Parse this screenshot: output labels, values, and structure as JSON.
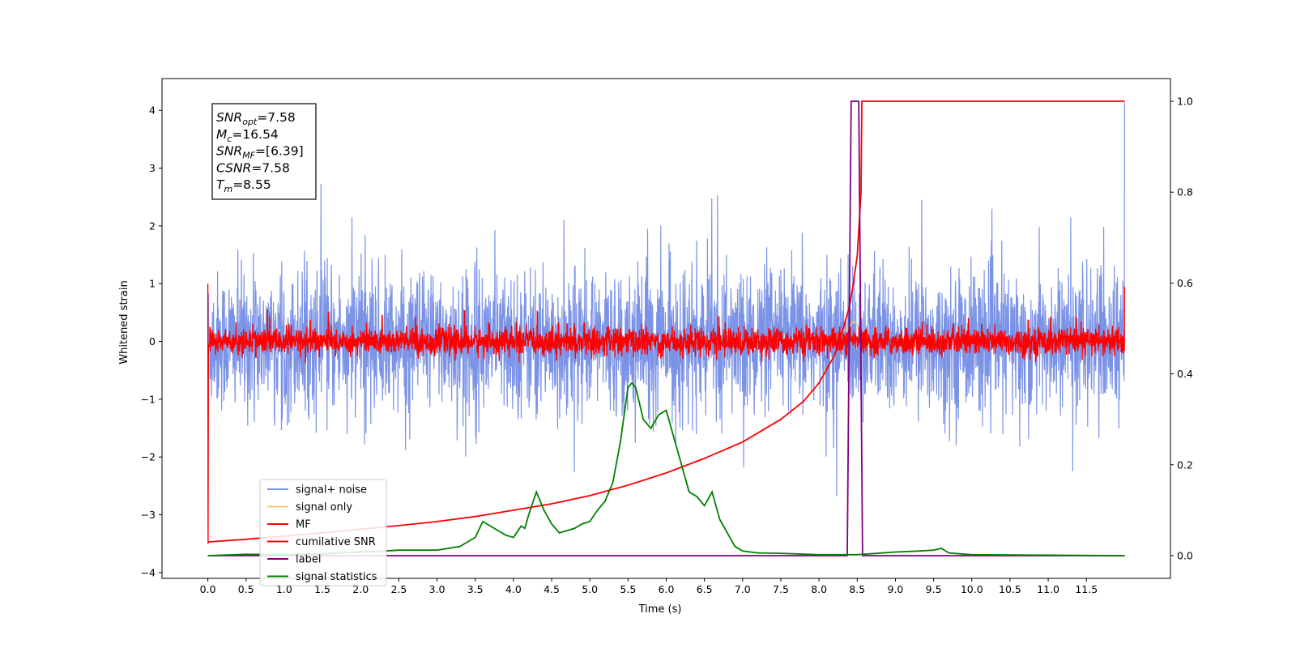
{
  "chart_data": {
    "type": "line",
    "title": "",
    "xlabel": "Time (s)",
    "ylabel": "Whitened strain",
    "xlim": [
      -0.6,
      12.6
    ],
    "ylim": [
      -4.1,
      4.55
    ],
    "ylim_right": [
      -0.05,
      1.05
    ],
    "x_ticks": [
      "0.0",
      "0.5",
      "1.0",
      "1.5",
      "2.0",
      "2.5",
      "3.0",
      "3.5",
      "4.0",
      "4.5",
      "5.0",
      "5.5",
      "6.0",
      "6.5",
      "7.0",
      "7.5",
      "8.0",
      "8.5",
      "9.0",
      "9.5",
      "10.0",
      "10.5",
      "11.0",
      "11.5"
    ],
    "y_ticks_left": [
      "4",
      "3",
      "2",
      "1",
      "0",
      "−1",
      "−2",
      "−3",
      "−4"
    ],
    "y_ticks_right": [
      "1.0",
      "0.8",
      "0.6",
      "0.4",
      "0.2",
      "0.0"
    ],
    "grid": false,
    "legend_position": "lower-left",
    "annotation": [
      {
        "base": "SNR",
        "sub": "opt",
        "rest": "=7.58"
      },
      {
        "base": "M",
        "sub": "c",
        "rest": "=16.54"
      },
      {
        "base": "SNR",
        "sub": "MF",
        "rest": "=[6.39]"
      },
      {
        "base": "CSNR",
        "sub": "",
        "rest": "=7.58"
      },
      {
        "base": "T",
        "sub": "m",
        "rest": "=8.55"
      }
    ],
    "series": [
      {
        "name": "signal+ noise",
        "axis": "left",
        "color": "#7b93e6",
        "note_style": "noisy around 0, amplitude about ±1.5, spikes to ±2.5, final spike 4.15 at t=12.0",
        "noise_std": 0.6
      },
      {
        "name": "signal only",
        "axis": "left",
        "color": "#f5c87a",
        "x": [
          8.0,
          8.2,
          8.4,
          8.45,
          8.5,
          8.55,
          8.56
        ],
        "y": [
          0.0,
          0.08,
          0.25,
          0.35,
          0.3,
          0.1,
          0.0
        ]
      },
      {
        "name": "MF",
        "axis": "left",
        "color": "#ff0000",
        "note_style": "noisy around 0, amplitude about ±0.25, spikes to 0.6",
        "noise_std": 0.12
      },
      {
        "name": "cumilative SNR",
        "axis": "right",
        "color": "#ff0000",
        "x": [
          0.0,
          0.5,
          1.0,
          1.5,
          2.0,
          2.5,
          3.0,
          3.5,
          4.0,
          4.5,
          5.0,
          5.5,
          6.0,
          6.5,
          7.0,
          7.5,
          7.8,
          8.0,
          8.2,
          8.3,
          8.4,
          8.45,
          8.5,
          8.55,
          8.56,
          12.0
        ],
        "y": [
          0.03,
          0.036,
          0.043,
          0.05,
          0.058,
          0.066,
          0.075,
          0.086,
          0.1,
          0.114,
          0.132,
          0.155,
          0.182,
          0.214,
          0.25,
          0.3,
          0.34,
          0.38,
          0.44,
          0.49,
          0.55,
          0.6,
          0.66,
          0.8,
          1.0,
          1.0
        ]
      },
      {
        "name": "label",
        "axis": "right",
        "color": "#800080",
        "x": [
          0.0,
          8.37,
          8.42,
          8.47,
          8.52,
          8.57,
          12.0
        ],
        "y": [
          0.0,
          0.0,
          1.0,
          1.0,
          1.0,
          0.0,
          0.0
        ]
      },
      {
        "name": "signal statistics",
        "axis": "right",
        "color": "#008000",
        "x": [
          0.0,
          0.5,
          1.0,
          1.5,
          2.0,
          2.3,
          2.5,
          3.0,
          3.3,
          3.5,
          3.6,
          3.7,
          3.8,
          3.9,
          4.0,
          4.1,
          4.15,
          4.2,
          4.3,
          4.4,
          4.5,
          4.6,
          4.7,
          4.8,
          4.9,
          5.0,
          5.1,
          5.2,
          5.3,
          5.4,
          5.5,
          5.55,
          5.6,
          5.7,
          5.8,
          5.9,
          6.0,
          6.1,
          6.2,
          6.3,
          6.4,
          6.5,
          6.6,
          6.7,
          6.8,
          6.9,
          7.0,
          7.2,
          7.5,
          8.0,
          8.5,
          9.0,
          9.3,
          9.5,
          9.6,
          9.7,
          10.0,
          11.0,
          12.0
        ],
        "y": [
          0.0,
          0.003,
          0.002,
          0.004,
          0.008,
          0.01,
          0.012,
          0.012,
          0.02,
          0.04,
          0.075,
          0.065,
          0.055,
          0.045,
          0.04,
          0.065,
          0.06,
          0.09,
          0.14,
          0.1,
          0.07,
          0.05,
          0.055,
          0.06,
          0.07,
          0.075,
          0.1,
          0.12,
          0.16,
          0.25,
          0.37,
          0.38,
          0.37,
          0.3,
          0.28,
          0.31,
          0.32,
          0.26,
          0.2,
          0.14,
          0.13,
          0.11,
          0.14,
          0.08,
          0.05,
          0.02,
          0.01,
          0.006,
          0.005,
          0.002,
          0.002,
          0.008,
          0.01,
          0.012,
          0.016,
          0.006,
          0.002,
          0.001,
          0.0
        ]
      }
    ]
  }
}
